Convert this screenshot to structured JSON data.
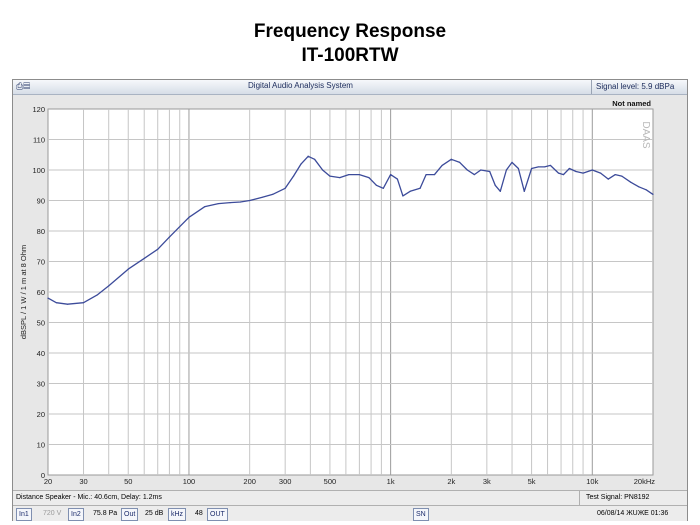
{
  "page": {
    "title_line1": "Frequency Response",
    "title_line2": "IT-100RTW"
  },
  "window": {
    "app_title": "Digital Audio Analysis System",
    "signal_level": "Signal level: 5.9 dBPa",
    "curve_name": "Not named",
    "watermark": "DAAS",
    "menu_icon": "printer-icon"
  },
  "status": {
    "distance": "Distance Speaker - Mic.: 40.6cm, Delay: 1.2ms",
    "test_signal": "Test Signal: PN8192",
    "input1": "In1",
    "volt": "720 V",
    "input2": "In2",
    "pa": "75.8 Pa",
    "out": "Out",
    "gain": "25 dB",
    "khz": "kHz",
    "rate": "48",
    "out2": "OUT",
    "sn": "SN",
    "date_time": "06/08/14  ЖUЖE 01:36"
  },
  "chart_data": {
    "type": "line",
    "title": "Frequency Response",
    "subtitle": "IT-100RTW",
    "xlabel": "",
    "ylabel": "dBSPL / 1 W / 1 m at 8 Ohm",
    "x_scale": "log",
    "xlim": [
      20,
      20000
    ],
    "ylim": [
      0,
      120
    ],
    "grid": true,
    "y_ticks": [
      0,
      10,
      20,
      30,
      40,
      50,
      60,
      70,
      80,
      90,
      100,
      110,
      120
    ],
    "x_ticks": [
      {
        "value": 20,
        "label": "20"
      },
      {
        "value": 30,
        "label": "30"
      },
      {
        "value": 50,
        "label": "50"
      },
      {
        "value": 100,
        "label": "100"
      },
      {
        "value": 200,
        "label": "200"
      },
      {
        "value": 300,
        "label": "300"
      },
      {
        "value": 500,
        "label": "500"
      },
      {
        "value": 1000,
        "label": "1k"
      },
      {
        "value": 2000,
        "label": "2k"
      },
      {
        "value": 3000,
        "label": "3k"
      },
      {
        "value": 5000,
        "label": "5k"
      },
      {
        "value": 10000,
        "label": "10k"
      },
      {
        "value": 20000,
        "label": "20kHz"
      }
    ],
    "series": [
      {
        "name": "Not named",
        "color": "#3c4b9a",
        "x": [
          20,
          22,
          25,
          30,
          35,
          40,
          50,
          60,
          70,
          80,
          100,
          120,
          140,
          160,
          180,
          200,
          230,
          260,
          300,
          330,
          360,
          390,
          420,
          460,
          500,
          560,
          620,
          700,
          780,
          850,
          920,
          1000,
          1080,
          1150,
          1250,
          1400,
          1500,
          1650,
          1800,
          2000,
          2200,
          2400,
          2600,
          2800,
          3100,
          3300,
          3500,
          3750,
          4000,
          4300,
          4600,
          5000,
          5400,
          5800,
          6200,
          6800,
          7200,
          7700,
          8300,
          9000,
          10000,
          11000,
          12000,
          13000,
          14000,
          15500,
          17000,
          18500,
          20000
        ],
        "y": [
          58,
          56.5,
          56,
          56.5,
          59,
          62,
          67.5,
          71,
          74,
          78,
          84.5,
          88,
          89,
          89.3,
          89.5,
          90,
          91,
          92,
          94,
          98,
          102,
          104.5,
          103.5,
          100,
          98,
          97.5,
          98.5,
          98.5,
          97.5,
          95,
          94,
          98.5,
          97,
          91.5,
          93,
          94,
          98.5,
          98.5,
          101.5,
          103.5,
          102.5,
          100,
          98.5,
          100,
          99.5,
          95,
          93,
          100,
          102.5,
          100.5,
          93,
          100.5,
          101,
          101,
          101.5,
          99,
          98.5,
          100.5,
          99.5,
          99,
          100,
          99,
          97,
          98.5,
          98,
          96,
          94.5,
          93.5,
          92
        ]
      }
    ]
  }
}
